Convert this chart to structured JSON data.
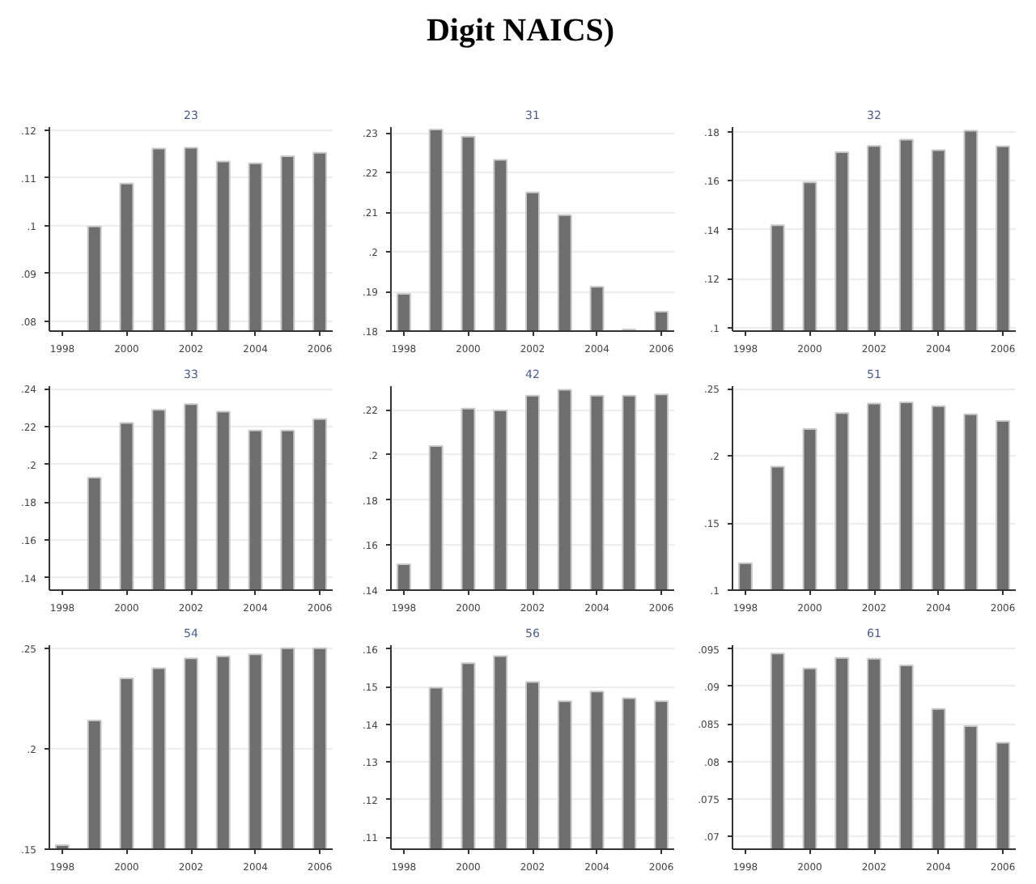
{
  "chart_data": [
    {
      "type": "bar",
      "title": "23",
      "annotations": [
        "Digit NAICS)"
      ],
      "x": [
        1999,
        2000,
        2001,
        2002,
        2003,
        2004,
        2005,
        2006
      ],
      "values": [
        0.0998,
        0.1088,
        0.1161,
        0.1163,
        0.1134,
        0.113,
        0.1145,
        0.1152
      ],
      "color": "#6e6e6e",
      "xlim": [
        1997.6,
        2006.4
      ],
      "xticks": [
        1998,
        2000,
        2002,
        2004,
        2006
      ],
      "ylim": [
        0.0779,
        0.1206
      ],
      "yticks": [
        {
          "value": 0.08,
          "label": ".08"
        },
        {
          "value": 0.09,
          "label": ".09"
        },
        {
          "value": 0.1,
          "label": ".1"
        },
        {
          "value": 0.11,
          "label": ".11"
        },
        {
          "value": 0.12,
          "label": ".12"
        }
      ],
      "grid": "y"
    },
    {
      "type": "bar",
      "title": "31",
      "x": [
        1998,
        1999,
        2000,
        2001,
        2002,
        2003,
        2004,
        2005,
        2006
      ],
      "values": [
        0.1894,
        0.2309,
        0.2291,
        0.2232,
        0.215,
        0.2093,
        0.1912,
        0.1804,
        0.1849
      ],
      "color": "#6e6e6e",
      "xlim": [
        1997.6,
        2006.4
      ],
      "xticks": [
        1998,
        2000,
        2002,
        2004,
        2006
      ],
      "ylim": [
        0.18,
        0.2315
      ],
      "yticks": [
        {
          "value": 0.18,
          "label": ".18"
        },
        {
          "value": 0.19,
          "label": ".19"
        },
        {
          "value": 0.2,
          "label": ".2"
        },
        {
          "value": 0.21,
          "label": ".21"
        },
        {
          "value": 0.22,
          "label": ".22"
        },
        {
          "value": 0.23,
          "label": ".23"
        }
      ],
      "grid": "y"
    },
    {
      "type": "bar",
      "title": "32",
      "x": [
        1999,
        2000,
        2001,
        2002,
        2003,
        2004,
        2005,
        2006
      ],
      "values": [
        0.1419,
        0.1594,
        0.1717,
        0.1743,
        0.1769,
        0.1726,
        0.1805,
        0.1741
      ],
      "color": "#6e6e6e",
      "xlim": [
        1997.6,
        2006.4
      ],
      "xticks": [
        1998,
        2000,
        2002,
        2004,
        2006
      ],
      "ylim": [
        0.0986,
        0.182
      ],
      "yticks": [
        {
          "value": 0.1,
          "label": ".1"
        },
        {
          "value": 0.12,
          "label": ".12"
        },
        {
          "value": 0.14,
          "label": ".14"
        },
        {
          "value": 0.16,
          "label": ".16"
        },
        {
          "value": 0.18,
          "label": ".18"
        }
      ],
      "grid": "y"
    },
    {
      "type": "bar",
      "title": "33",
      "x": [
        1999,
        2000,
        2001,
        2002,
        2003,
        2004,
        2005,
        2006
      ],
      "values": [
        0.193,
        0.222,
        0.229,
        0.232,
        0.228,
        0.218,
        0.218,
        0.224
      ],
      "color": "#6e6e6e",
      "xlim": [
        1997.6,
        2006.4
      ],
      "xticks": [
        1998,
        2000,
        2002,
        2004,
        2006
      ],
      "ylim": [
        0.1334,
        0.2415
      ],
      "yticks": [
        {
          "value": 0.14,
          "label": ".14"
        },
        {
          "value": 0.16,
          "label": ".16"
        },
        {
          "value": 0.18,
          "label": ".18"
        },
        {
          "value": 0.2,
          "label": ".2"
        },
        {
          "value": 0.22,
          "label": ".22"
        },
        {
          "value": 0.24,
          "label": ".24"
        }
      ],
      "grid": "y"
    },
    {
      "type": "bar",
      "title": "42",
      "x": [
        1998,
        1999,
        2000,
        2001,
        2002,
        2003,
        2004,
        2005,
        2006
      ],
      "values": [
        0.1515,
        0.2039,
        0.2205,
        0.2197,
        0.2263,
        0.2289,
        0.2263,
        0.2263,
        0.2268
      ],
      "color": "#6e6e6e",
      "xlim": [
        1997.6,
        2006.4
      ],
      "xticks": [
        1998,
        2000,
        2002,
        2004,
        2006
      ],
      "ylim": [
        0.14,
        0.2305
      ],
      "yticks": [
        {
          "value": 0.14,
          "label": ".14"
        },
        {
          "value": 0.16,
          "label": ".16"
        },
        {
          "value": 0.18,
          "label": ".18"
        },
        {
          "value": 0.2,
          "label": ".2"
        },
        {
          "value": 0.22,
          "label": ".22"
        }
      ],
      "grid": "y"
    },
    {
      "type": "bar",
      "title": "51",
      "x": [
        1998,
        1999,
        2000,
        2001,
        2002,
        2003,
        2004,
        2005,
        2006
      ],
      "values": [
        0.12,
        0.192,
        0.22,
        0.232,
        0.239,
        0.24,
        0.237,
        0.231,
        0.226
      ],
      "color": "#6e6e6e",
      "xlim": [
        1997.6,
        2006.4
      ],
      "xticks": [
        1998,
        2000,
        2002,
        2004,
        2006
      ],
      "ylim": [
        0.1,
        0.252
      ],
      "yticks": [
        {
          "value": 0.1,
          "label": ".1"
        },
        {
          "value": 0.15,
          "label": ".15"
        },
        {
          "value": 0.2,
          "label": ".2"
        },
        {
          "value": 0.25,
          "label": ".25"
        }
      ],
      "grid": "y"
    },
    {
      "type": "bar",
      "title": "54",
      "x": [
        1998,
        1999,
        2000,
        2001,
        2002,
        2003,
        2004,
        2005,
        2006
      ],
      "values": [
        0.152,
        0.214,
        0.235,
        0.24,
        0.245,
        0.246,
        0.247,
        0.25,
        0.25
      ],
      "color": "#6e6e6e",
      "xlim": [
        1997.6,
        2006.4
      ],
      "xticks": [
        1998,
        2000,
        2002,
        2004,
        2006
      ],
      "ylim": [
        0.15,
        0.2515
      ],
      "yticks": [
        {
          "value": 0.15,
          "label": ".15"
        },
        {
          "value": 0.2,
          "label": ".2"
        },
        {
          "value": 0.25,
          "label": ".25"
        }
      ],
      "grid": "y"
    },
    {
      "type": "bar",
      "title": "56",
      "x": [
        1999,
        2000,
        2001,
        2002,
        2003,
        2004,
        2005,
        2006
      ],
      "values": [
        0.1497,
        0.1562,
        0.1581,
        0.1512,
        0.1461,
        0.1487,
        0.1469,
        0.1461
      ],
      "color": "#6e6e6e",
      "xlim": [
        1997.6,
        2006.4
      ],
      "xticks": [
        1998,
        2000,
        2002,
        2004,
        2006
      ],
      "ylim": [
        0.1068,
        0.161
      ],
      "yticks": [
        {
          "value": 0.11,
          "label": ".11"
        },
        {
          "value": 0.12,
          "label": ".12"
        },
        {
          "value": 0.13,
          "label": ".13"
        },
        {
          "value": 0.14,
          "label": ".14"
        },
        {
          "value": 0.15,
          "label": ".15"
        },
        {
          "value": 0.16,
          "label": ".16"
        }
      ],
      "grid": "y"
    },
    {
      "type": "bar",
      "title": "61",
      "x": [
        1999,
        2000,
        2001,
        2002,
        2003,
        2004,
        2005,
        2006
      ],
      "values": [
        0.0944,
        0.0924,
        0.0938,
        0.0937,
        0.0928,
        0.087,
        0.0847,
        0.0825
      ],
      "color": "#6e6e6e",
      "xlim": [
        1997.6,
        2006.4
      ],
      "xticks": [
        1998,
        2000,
        2002,
        2004,
        2006
      ],
      "ylim": [
        0.0683,
        0.0955
      ],
      "yticks": [
        {
          "value": 0.07,
          "label": ".07"
        },
        {
          "value": 0.075,
          "label": ".075"
        },
        {
          "value": 0.08,
          "label": ".08"
        },
        {
          "value": 0.085,
          "label": ".085"
        },
        {
          "value": 0.09,
          "label": ".09"
        },
        {
          "value": 0.095,
          "label": ".095"
        }
      ],
      "grid": "y"
    }
  ]
}
